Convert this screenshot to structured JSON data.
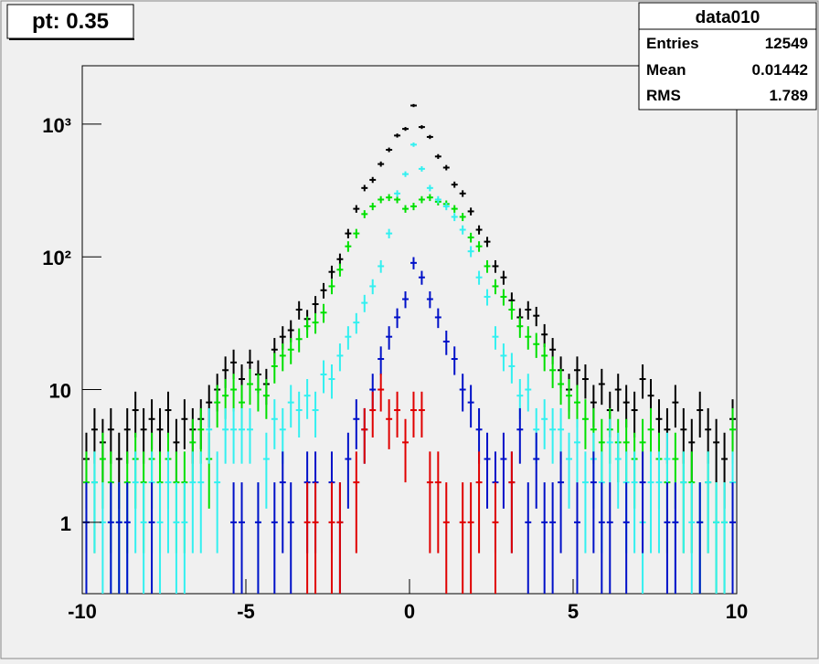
{
  "chart_data": {
    "type": "histogram",
    "title": "pt: 0.35",
    "log_y": true,
    "stats": {
      "title": "data010",
      "rows": [
        [
          "Entries",
          "12549"
        ],
        [
          "Mean",
          "0.01442"
        ],
        [
          "RMS",
          "1.789"
        ]
      ]
    },
    "bins": [
      -10,
      -9.75,
      -9.5,
      -9.25,
      -9,
      -8.75,
      -8.5,
      -8.25,
      -8,
      -7.75,
      -7.5,
      -7.25,
      -7,
      -6.75,
      -6.5,
      -6.25,
      -6,
      -5.75,
      -5.5,
      -5.25,
      -5,
      -4.75,
      -4.5,
      -4.25,
      -4,
      -3.75,
      -3.5,
      -3.25,
      -3,
      -2.75,
      -2.5,
      -2.25,
      -2,
      -1.75,
      -1.5,
      -1.25,
      -1,
      -0.75,
      -0.5,
      -0.25,
      0,
      0.25,
      0.5,
      0.75,
      1,
      1.25,
      1.5,
      1.75,
      2,
      2.25,
      2.5,
      2.75,
      3,
      3.25,
      3.5,
      3.75,
      4,
      4.25,
      4.5,
      4.75,
      5,
      5.25,
      5.5,
      5.75,
      6,
      6.25,
      6.5,
      6.75,
      7,
      7.25,
      7.5,
      7.75,
      8,
      8.25,
      8.5,
      8.75,
      9,
      9.25,
      9.5,
      9.75,
      10
    ],
    "xlim": [
      -10,
      10
    ],
    "xticks": [
      -10,
      -5,
      0,
      5,
      10
    ],
    "ylim": [
      0.29,
      2750
    ],
    "yticks": [
      1,
      10,
      {
        "value": 100,
        "label": "10²"
      },
      {
        "value": 1000,
        "label": "10³"
      }
    ],
    "series": [
      {
        "color": "#000000",
        "values": [
          3,
          5,
          4,
          5,
          3,
          5,
          7,
          5,
          6,
          5,
          7,
          4,
          6,
          5,
          6,
          8,
          10,
          14,
          16,
          12,
          16,
          13,
          11,
          20,
          25,
          28,
          40,
          34,
          44,
          56,
          77,
          96,
          150,
          230,
          330,
          380,
          500,
          640,
          820,
          920,
          1380,
          950,
          800,
          570,
          470,
          350,
          300,
          220,
          160,
          130,
          85,
          70,
          47,
          35,
          40,
          36,
          26,
          20,
          14,
          10,
          14,
          12,
          8,
          11,
          7,
          10,
          8,
          7,
          12,
          9,
          6,
          5,
          8,
          5,
          4,
          7,
          5,
          4,
          3,
          6
        ]
      },
      {
        "color": "#00e000",
        "values": [
          2,
          2,
          3,
          2,
          1,
          2,
          3,
          2,
          3,
          2,
          3,
          2,
          2,
          4,
          5,
          3,
          8,
          9,
          10,
          8,
          11,
          10,
          9,
          15,
          18,
          20,
          24,
          30,
          32,
          38,
          60,
          80,
          120,
          150,
          210,
          240,
          270,
          280,
          270,
          230,
          240,
          270,
          280,
          260,
          250,
          230,
          200,
          140,
          120,
          85,
          60,
          50,
          40,
          30,
          25,
          22,
          18,
          14,
          11,
          9,
          8,
          6,
          5,
          4,
          5,
          4,
          4,
          3,
          4,
          5,
          3,
          2,
          3,
          2,
          2,
          1,
          2,
          1,
          1,
          5
        ]
      },
      {
        "color": "#33f0f0",
        "values": [
          1,
          2,
          1,
          1,
          1,
          1,
          2,
          1,
          2,
          1,
          2,
          1,
          1,
          2,
          2,
          5,
          2,
          5,
          5,
          5,
          5,
          1,
          3,
          6,
          5,
          8,
          7,
          9,
          7,
          13,
          12,
          18,
          25,
          32,
          45,
          60,
          85,
          150,
          300,
          420,
          700,
          460,
          330,
          270,
          240,
          200,
          160,
          110,
          70,
          50,
          25,
          18,
          15,
          9,
          10,
          5,
          6,
          5,
          5,
          3,
          4,
          2,
          3,
          2,
          4,
          3,
          2,
          2,
          1,
          2,
          2,
          3,
          1,
          2,
          1,
          1,
          2,
          1,
          1,
          2
        ]
      },
      {
        "color": "#0010c8",
        "values": [
          1,
          null,
          null,
          1,
          1,
          1,
          null,
          null,
          1,
          null,
          null,
          null,
          null,
          null,
          null,
          null,
          null,
          null,
          1,
          1,
          null,
          1,
          null,
          1,
          2,
          1,
          null,
          2,
          2,
          null,
          2,
          1,
          3,
          6,
          5,
          10,
          17,
          25,
          35,
          48,
          90,
          70,
          48,
          35,
          23,
          17,
          10,
          8,
          5,
          3,
          2,
          3,
          2,
          5,
          1,
          3,
          1,
          1,
          2,
          null,
          1,
          null,
          2,
          1,
          1,
          null,
          1,
          null,
          2,
          null,
          null,
          1,
          1,
          null,
          null,
          1,
          null,
          null,
          null,
          1
        ]
      },
      {
        "color": "#e00000",
        "values": [
          null,
          null,
          null,
          null,
          null,
          null,
          null,
          null,
          null,
          null,
          null,
          null,
          null,
          null,
          null,
          null,
          null,
          null,
          null,
          null,
          null,
          null,
          null,
          null,
          null,
          null,
          null,
          1,
          1,
          null,
          1,
          1,
          null,
          2,
          5,
          7,
          10,
          6,
          7,
          4,
          7,
          7,
          2,
          2,
          1,
          null,
          1,
          1,
          2,
          null,
          1,
          null,
          2,
          null,
          null,
          null,
          null,
          null,
          null,
          null,
          null,
          null,
          null,
          null,
          null,
          null,
          null,
          null,
          null,
          null,
          null,
          null,
          null,
          null,
          null,
          null,
          null,
          null,
          null,
          null
        ]
      }
    ]
  }
}
